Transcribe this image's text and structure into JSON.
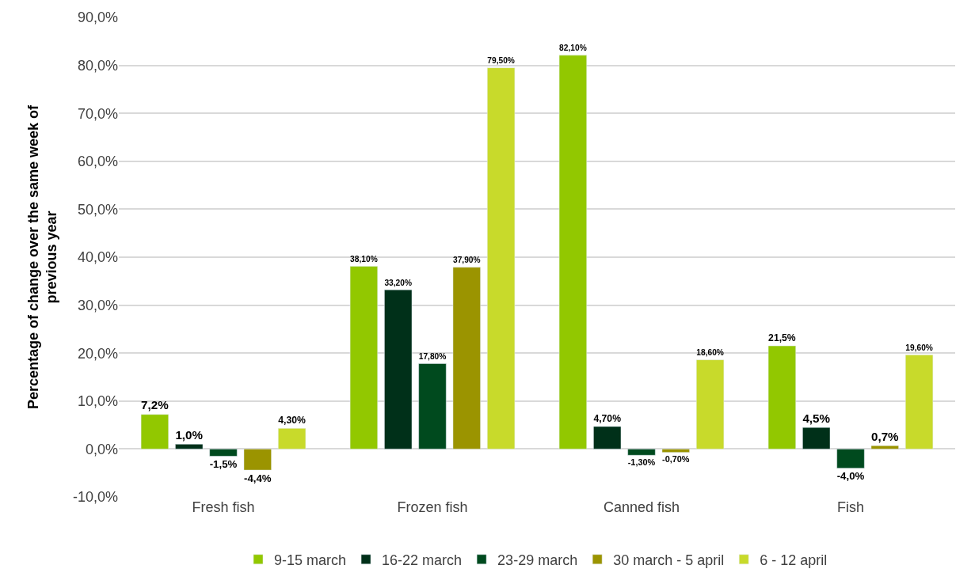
{
  "chart_data": {
    "type": "bar",
    "ylabel": "Percentage of change over the same week of previous year",
    "categories": [
      "Fresh fish",
      "Frozen fish",
      "Canned fish",
      "Fish"
    ],
    "series": [
      {
        "name": "9-15 march",
        "color": "#92c800",
        "values": [
          7.2,
          38.1,
          82.1,
          21.5
        ],
        "value_labels": [
          "7,2%",
          "38,10%",
          "82,10%",
          "21,5%"
        ]
      },
      {
        "name": "16-22 march",
        "color": "#003019",
        "values": [
          1.0,
          33.2,
          4.7,
          4.5
        ],
        "value_labels": [
          "1,0%",
          "33,20%",
          "4,70%",
          "4,5%"
        ]
      },
      {
        "name": "23-29 march",
        "color": "#004a1e",
        "values": [
          -1.5,
          17.8,
          -1.3,
          -4.0
        ],
        "value_labels": [
          "-1,5%",
          "17,80%",
          "-1,30%",
          "-4,0%"
        ]
      },
      {
        "name": "30 march - 5 april",
        "color": "#9b9400",
        "values": [
          -4.4,
          37.9,
          -0.7,
          0.7
        ],
        "value_labels": [
          "-4,4%",
          "37,90%",
          "-0,70%",
          "0,7%"
        ]
      },
      {
        "name": "6 - 12 april",
        "color": "#c8da2b",
        "values": [
          4.3,
          79.5,
          18.6,
          19.6
        ],
        "value_labels": [
          "4,30%",
          "79,50%",
          "18,60%",
          "19,60%"
        ]
      }
    ],
    "ylim": [
      -10,
      90
    ],
    "yticks": [
      {
        "value": -10,
        "label": "-10,0%"
      },
      {
        "value": 0,
        "label": "0,0%"
      },
      {
        "value": 10,
        "label": "10,0%"
      },
      {
        "value": 20,
        "label": "20,0%"
      },
      {
        "value": 30,
        "label": "30,0%"
      },
      {
        "value": 40,
        "label": "40,0%"
      },
      {
        "value": 50,
        "label": "50,0%"
      },
      {
        "value": 60,
        "label": "60,0%"
      },
      {
        "value": 70,
        "label": "70,0%"
      },
      {
        "value": 80,
        "label": "80,0%"
      },
      {
        "value": 90,
        "label": "90,0%"
      }
    ],
    "grid": "y",
    "legend": "bottom"
  }
}
